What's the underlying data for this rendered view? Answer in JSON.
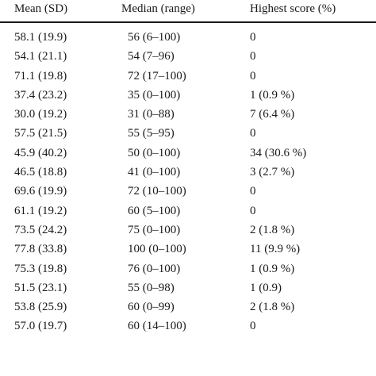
{
  "table": {
    "headers": [
      "Mean (SD)",
      "Median (range)",
      "Highest score (%)"
    ],
    "rows": [
      [
        "58.1 (19.9)",
        "56 (6–100)",
        "0"
      ],
      [
        "54.1 (21.1)",
        "54 (7–96)",
        "0"
      ],
      [
        "71.1 (19.8)",
        "72 (17–100)",
        "0"
      ],
      [
        "37.4 (23.2)",
        "35 (0–100)",
        "1 (0.9 %)"
      ],
      [
        "30.0 (19.2)",
        "31 (0–88)",
        "7 (6.4 %)"
      ],
      [
        "57.5 (21.5)",
        "55 (5–95)",
        "0"
      ],
      [
        "45.9 (40.2)",
        "50 (0–100)",
        "34 (30.6 %)"
      ],
      [
        "46.5 (18.8)",
        "41 (0–100)",
        "3 (2.7 %)"
      ],
      [
        "69.6 (19.9)",
        "72 (10–100)",
        "0"
      ],
      [
        "61.1 (19.2)",
        "60 (5–100)",
        "0"
      ],
      [
        "73.5 (24.2)",
        "75 (0–100)",
        "2 (1.8 %)"
      ],
      [
        "77.8 (33.8)",
        "100 (0–100)",
        "11 (9.9 %)"
      ],
      [
        "75.3 (19.8)",
        "76 (0–100)",
        "1 (0.9 %)"
      ],
      [
        "51.5 (23.1)",
        "55 (0–98)",
        "1 (0.9)"
      ],
      [
        "53.8 (25.9)",
        "60 (0–99)",
        "2 (1.8 %)"
      ],
      [
        "57.0 (19.7)",
        "60 (14–100)",
        "0"
      ]
    ]
  }
}
